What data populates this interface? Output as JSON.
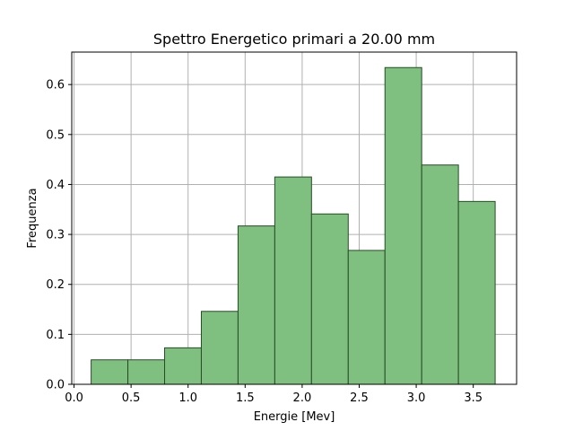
{
  "chart_data": {
    "type": "bar",
    "title": "Spettro Energetico primari a 20.00 mm",
    "xlabel": "Energie [Mev]",
    "ylabel": "Frequenza",
    "xlim": [
      -0.02,
      3.88
    ],
    "ylim": [
      0,
      0.665
    ],
    "xticks": [
      "0.0",
      "0.5",
      "1.0",
      "1.5",
      "2.0",
      "2.5",
      "3.0",
      "3.5"
    ],
    "xtick_values": [
      0.0,
      0.5,
      1.0,
      1.5,
      2.0,
      2.5,
      3.0,
      3.5
    ],
    "yticks": [
      "0.0",
      "0.1",
      "0.2",
      "0.3",
      "0.4",
      "0.5",
      "0.6"
    ],
    "ytick_values": [
      0.0,
      0.1,
      0.2,
      0.3,
      0.4,
      0.5,
      0.6
    ],
    "grid": true,
    "bin_edges": [
      0.15,
      0.472,
      0.794,
      1.116,
      1.438,
      1.76,
      2.082,
      2.404,
      2.726,
      3.048,
      3.37,
      3.692
    ],
    "values": [
      0.049,
      0.049,
      0.073,
      0.146,
      0.317,
      0.415,
      0.341,
      0.268,
      0.634,
      0.439,
      0.366
    ],
    "bar_color": "#7fbf7f",
    "edge_color": "#264d26"
  }
}
